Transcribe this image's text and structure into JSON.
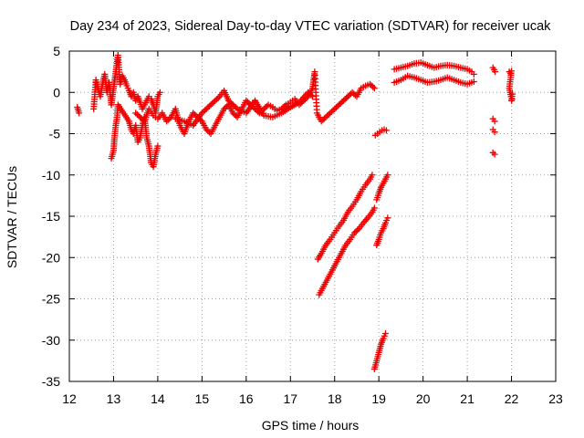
{
  "chart_data": {
    "type": "scatter",
    "title": "Day 234 of 2023, Sidereal Day-to-day VTEC variation (SDTVAR) for receiver ucak",
    "xlabel": "GPS time / hours",
    "ylabel": "SDTVAR / TECUs",
    "xlim": [
      12,
      23
    ],
    "ylim": [
      -35,
      5
    ],
    "xticks": [
      "12",
      "13",
      "14",
      "15",
      "16",
      "17",
      "18",
      "19",
      "20",
      "21",
      "22",
      "23"
    ],
    "yticks": [
      "5",
      "0",
      "-5",
      "-10",
      "-15",
      "-20",
      "-25",
      "-30",
      "-35"
    ],
    "grid": true,
    "marker": "plus",
    "series_color": "#ee0000",
    "segments": [
      {
        "name": "isolated start",
        "points": [
          [
            12.18,
            -1.8
          ],
          [
            12.22,
            -2.5
          ]
        ]
      },
      {
        "name": "early cluster A",
        "points": [
          [
            12.55,
            -2.0
          ],
          [
            12.6,
            1.5
          ],
          [
            12.65,
            0.5
          ],
          [
            12.7,
            -0.5
          ],
          [
            12.75,
            1.0
          ],
          [
            12.8,
            2.2
          ],
          [
            12.85,
            0.0
          ],
          [
            12.9,
            1.2
          ],
          [
            12.95,
            -1.5
          ],
          [
            13.0,
            0.5
          ],
          [
            13.05,
            2.5
          ],
          [
            13.1,
            4.5
          ],
          [
            13.15,
            1.0
          ],
          [
            13.2,
            2.0
          ],
          [
            13.25,
            1.5
          ],
          [
            13.3,
            0.8
          ],
          [
            13.35,
            0.2
          ],
          [
            13.4,
            -0.5
          ],
          [
            13.45,
            0.0
          ],
          [
            13.5,
            -1.0
          ],
          [
            13.55,
            -0.5
          ],
          [
            13.6,
            -1.2
          ],
          [
            13.65,
            -2.0
          ],
          [
            13.7,
            -1.5
          ],
          [
            13.75,
            -1.0
          ],
          [
            13.8,
            -0.5
          ],
          [
            13.85,
            -0.8
          ],
          [
            13.9,
            -1.5
          ],
          [
            13.95,
            -2.5
          ],
          [
            14.0,
            -0.5
          ],
          [
            14.05,
            0.0
          ]
        ]
      },
      {
        "name": "early dip",
        "points": [
          [
            12.95,
            -8.0
          ],
          [
            13.0,
            -7.0
          ],
          [
            13.02,
            -5.5
          ],
          [
            13.05,
            -4.0
          ],
          [
            13.08,
            -3.0
          ],
          [
            13.1,
            -1.5
          ],
          [
            13.35,
            -3.5
          ],
          [
            13.4,
            -4.5
          ],
          [
            13.45,
            -5.0
          ],
          [
            13.5,
            -4.0
          ],
          [
            13.55,
            -6.0
          ],
          [
            13.6,
            -5.5
          ],
          [
            13.65,
            -4.0
          ],
          [
            13.7,
            -3.0
          ],
          [
            13.75,
            -5.5
          ],
          [
            13.8,
            -6.5
          ],
          [
            13.85,
            -8.5
          ],
          [
            13.9,
            -9.0
          ],
          [
            13.95,
            -7.5
          ],
          [
            14.0,
            -6.5
          ]
        ]
      },
      {
        "name": "main band",
        "points": [
          [
            13.5,
            -2.5
          ],
          [
            13.6,
            -3.0
          ],
          [
            13.7,
            -3.5
          ],
          [
            13.8,
            -2.0
          ],
          [
            13.9,
            -2.8
          ],
          [
            14.0,
            -3.2
          ],
          [
            14.1,
            -2.5
          ],
          [
            14.2,
            -3.5
          ],
          [
            14.3,
            -3.0
          ],
          [
            14.4,
            -2.0
          ],
          [
            14.5,
            -4.0
          ],
          [
            14.6,
            -5.0
          ],
          [
            14.7,
            -3.5
          ],
          [
            14.8,
            -2.5
          ],
          [
            14.9,
            -3.0
          ],
          [
            15.0,
            -3.5
          ],
          [
            15.1,
            -4.5
          ],
          [
            15.2,
            -5.0
          ],
          [
            15.3,
            -4.0
          ],
          [
            15.4,
            -3.0
          ],
          [
            15.5,
            -2.0
          ],
          [
            15.6,
            -1.5
          ],
          [
            15.7,
            -2.5
          ],
          [
            15.8,
            -3.0
          ],
          [
            15.9,
            -2.0
          ],
          [
            16.0,
            -1.0
          ],
          [
            16.1,
            -1.5
          ],
          [
            16.2,
            -2.0
          ],
          [
            16.3,
            -2.5
          ],
          [
            16.4,
            -2.0
          ],
          [
            16.5,
            -1.5
          ],
          [
            16.6,
            -1.8
          ],
          [
            16.7,
            -2.2
          ],
          [
            16.8,
            -2.0
          ],
          [
            16.9,
            -1.5
          ],
          [
            17.0,
            -1.2
          ],
          [
            17.1,
            -0.8
          ],
          [
            17.2,
            -1.5
          ],
          [
            17.3,
            -1.0
          ],
          [
            17.4,
            -0.5
          ],
          [
            17.5,
            0.5
          ],
          [
            17.55,
            2.5
          ],
          [
            17.6,
            -2.5
          ],
          [
            17.7,
            -3.5
          ],
          [
            17.8,
            -3.0
          ],
          [
            17.9,
            -2.5
          ],
          [
            18.0,
            -2.0
          ],
          [
            18.1,
            -1.5
          ],
          [
            18.2,
            -1.0
          ],
          [
            18.3,
            -0.5
          ],
          [
            18.4,
            0.0
          ],
          [
            18.5,
            -0.5
          ],
          [
            18.6,
            0.5
          ],
          [
            18.7,
            0.8
          ],
          [
            18.8,
            1.0
          ],
          [
            18.9,
            0.5
          ]
        ]
      },
      {
        "name": "main band upper",
        "points": [
          [
            14.4,
            -3.2
          ],
          [
            14.6,
            -3.5
          ],
          [
            14.8,
            -4.0
          ],
          [
            15.0,
            -2.5
          ],
          [
            15.2,
            -1.5
          ],
          [
            15.4,
            -0.5
          ],
          [
            15.5,
            0.2
          ],
          [
            15.6,
            -1.0
          ],
          [
            15.8,
            -2.0
          ],
          [
            16.0,
            -2.5
          ],
          [
            16.2,
            -1.0
          ],
          [
            16.4,
            -2.8
          ],
          [
            16.6,
            -3.0
          ],
          [
            16.8,
            -2.5
          ],
          [
            17.0,
            -1.8
          ],
          [
            17.2,
            -1.2
          ],
          [
            17.4,
            0.0
          ],
          [
            17.5,
            -0.5
          ]
        ]
      },
      {
        "name": "descending line 1",
        "points": [
          [
            17.62,
            -20.2
          ],
          [
            17.7,
            -19.5
          ],
          [
            17.8,
            -18.5
          ],
          [
            17.9,
            -17.8
          ],
          [
            18.0,
            -17.0
          ],
          [
            18.1,
            -16.2
          ],
          [
            18.2,
            -15.5
          ],
          [
            18.3,
            -14.5
          ],
          [
            18.4,
            -13.8
          ],
          [
            18.5,
            -13.0
          ],
          [
            18.6,
            -12.0
          ],
          [
            18.7,
            -11.2
          ],
          [
            18.8,
            -10.5
          ],
          [
            18.85,
            -10.0
          ]
        ]
      },
      {
        "name": "descending line 2",
        "points": [
          [
            17.65,
            -24.5
          ],
          [
            17.75,
            -23.5
          ],
          [
            17.85,
            -22.5
          ],
          [
            17.95,
            -21.5
          ],
          [
            18.05,
            -20.5
          ],
          [
            18.15,
            -19.5
          ],
          [
            18.25,
            -18.5
          ],
          [
            18.35,
            -17.8
          ],
          [
            18.45,
            -17.0
          ],
          [
            18.55,
            -16.5
          ],
          [
            18.65,
            -15.8
          ],
          [
            18.75,
            -15.2
          ],
          [
            18.85,
            -14.5
          ],
          [
            18.9,
            -14.0
          ]
        ]
      },
      {
        "name": "descending line 3",
        "points": [
          [
            18.95,
            -18.5
          ],
          [
            19.0,
            -17.8
          ],
          [
            19.05,
            -17.0
          ],
          [
            19.1,
            -16.5
          ],
          [
            19.15,
            -15.8
          ],
          [
            19.2,
            -15.2
          ]
        ]
      },
      {
        "name": "descending line 4",
        "points": [
          [
            18.95,
            -13.0
          ],
          [
            19.0,
            -12.2
          ],
          [
            19.05,
            -11.5
          ],
          [
            19.1,
            -11.0
          ],
          [
            19.15,
            -10.5
          ],
          [
            19.2,
            -10.0
          ]
        ]
      },
      {
        "name": "descending line 5",
        "points": [
          [
            18.9,
            -33.5
          ],
          [
            18.95,
            -32.5
          ],
          [
            19.0,
            -31.5
          ],
          [
            19.05,
            -30.5
          ],
          [
            19.1,
            -29.8
          ],
          [
            19.15,
            -29.2
          ]
        ]
      },
      {
        "name": "short band",
        "points": [
          [
            18.92,
            -5.2
          ],
          [
            18.97,
            -5.0
          ],
          [
            19.02,
            -4.8
          ],
          [
            19.07,
            -4.6
          ],
          [
            19.12,
            -4.5
          ],
          [
            19.17,
            -4.6
          ]
        ]
      },
      {
        "name": "late upper band",
        "points": [
          [
            19.35,
            2.8
          ],
          [
            19.5,
            3.0
          ],
          [
            19.65,
            3.2
          ],
          [
            19.8,
            3.5
          ],
          [
            19.95,
            3.6
          ],
          [
            20.1,
            3.3
          ],
          [
            20.25,
            3.0
          ],
          [
            20.4,
            3.2
          ],
          [
            20.55,
            3.3
          ],
          [
            20.7,
            3.2
          ],
          [
            20.85,
            3.0
          ],
          [
            21.0,
            2.8
          ],
          [
            21.1,
            2.5
          ],
          [
            21.15,
            2.2
          ]
        ]
      },
      {
        "name": "late lower band",
        "points": [
          [
            19.35,
            1.2
          ],
          [
            19.5,
            1.5
          ],
          [
            19.65,
            2.0
          ],
          [
            19.8,
            1.8
          ],
          [
            19.95,
            1.5
          ],
          [
            20.1,
            1.2
          ],
          [
            20.25,
            1.3
          ],
          [
            20.4,
            1.5
          ],
          [
            20.55,
            1.8
          ],
          [
            20.7,
            1.5
          ],
          [
            20.85,
            1.2
          ],
          [
            21.0,
            1.0
          ],
          [
            21.1,
            1.2
          ],
          [
            21.15,
            1.3
          ]
        ]
      },
      {
        "name": "isolated late 1",
        "points": [
          [
            21.58,
            3.0
          ],
          [
            21.63,
            2.5
          ]
        ]
      },
      {
        "name": "isolated late 2",
        "points": [
          [
            21.58,
            -3.2
          ],
          [
            21.62,
            -3.5
          ]
        ]
      },
      {
        "name": "isolated late 3",
        "points": [
          [
            21.58,
            -4.5
          ],
          [
            21.62,
            -4.8
          ]
        ]
      },
      {
        "name": "isolated late 4",
        "points": [
          [
            21.58,
            -7.3
          ],
          [
            21.62,
            -7.5
          ]
        ]
      },
      {
        "name": "end segment",
        "points": [
          [
            21.95,
            2.5
          ],
          [
            21.98,
            2.3
          ],
          [
            22.0,
            2.6
          ],
          [
            21.95,
            0.5
          ],
          [
            21.97,
            0.0
          ],
          [
            21.99,
            -0.5
          ],
          [
            22.01,
            -0.8
          ],
          [
            22.0,
            -1.0
          ],
          [
            22.02,
            -0.2
          ]
        ]
      }
    ]
  }
}
